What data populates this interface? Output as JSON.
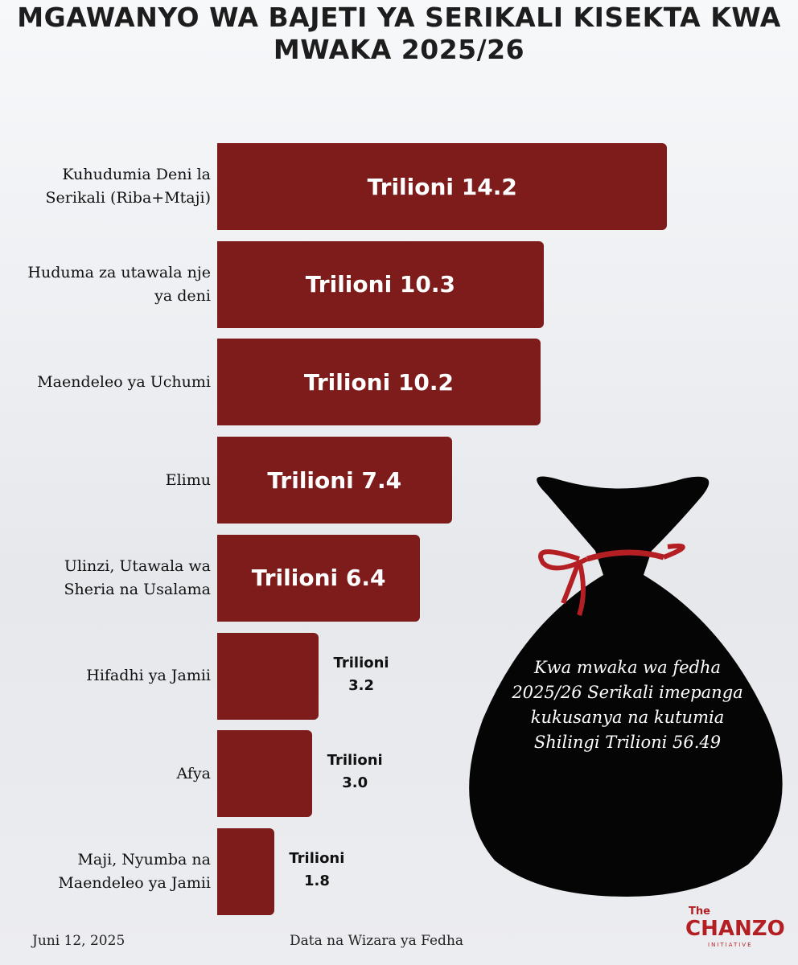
{
  "chart_data": {
    "type": "bar",
    "orientation": "horizontal",
    "title": "MGAWANYO WA BAJETI YA SERIKALI KISEKTA KWA MWAKA 2025/26",
    "categories": [
      "Kuhudumia Deni la Serikali (Riba+Mtaji)",
      "Huduma za utawala nje ya deni",
      "Maendeleo ya Uchumi",
      "Elimu",
      "Ulinzi, Utawala wa Sheria na Usalama",
      "Hifadhi ya Jamii",
      "Afya",
      "Maji, Nyumba na Maendeleo ya Jamii"
    ],
    "values": [
      14.2,
      10.3,
      10.2,
      7.4,
      6.4,
      3.2,
      3.0,
      1.8
    ],
    "value_labels": [
      "Trilioni 14.2",
      "Trilioni 10.3",
      "Trilioni 10.2",
      "Trilioni 7.4",
      "Trilioni 6.4",
      "Trilioni 3.2",
      "Trilioni 3.0",
      "Trilioni 1.8"
    ],
    "color": "#7e1c1c",
    "annotation": "Kwa mwaka wa fedha 2025/26 Serikali imepanga kukusanya na kutumia Shilingi Trilioni 56.49",
    "date": "Juni 12, 2025",
    "source": "Data na Wizara ya Fedha",
    "logo": {
      "top": "The",
      "name": "CHANZO",
      "tagline": "INITIATIVE"
    }
  }
}
